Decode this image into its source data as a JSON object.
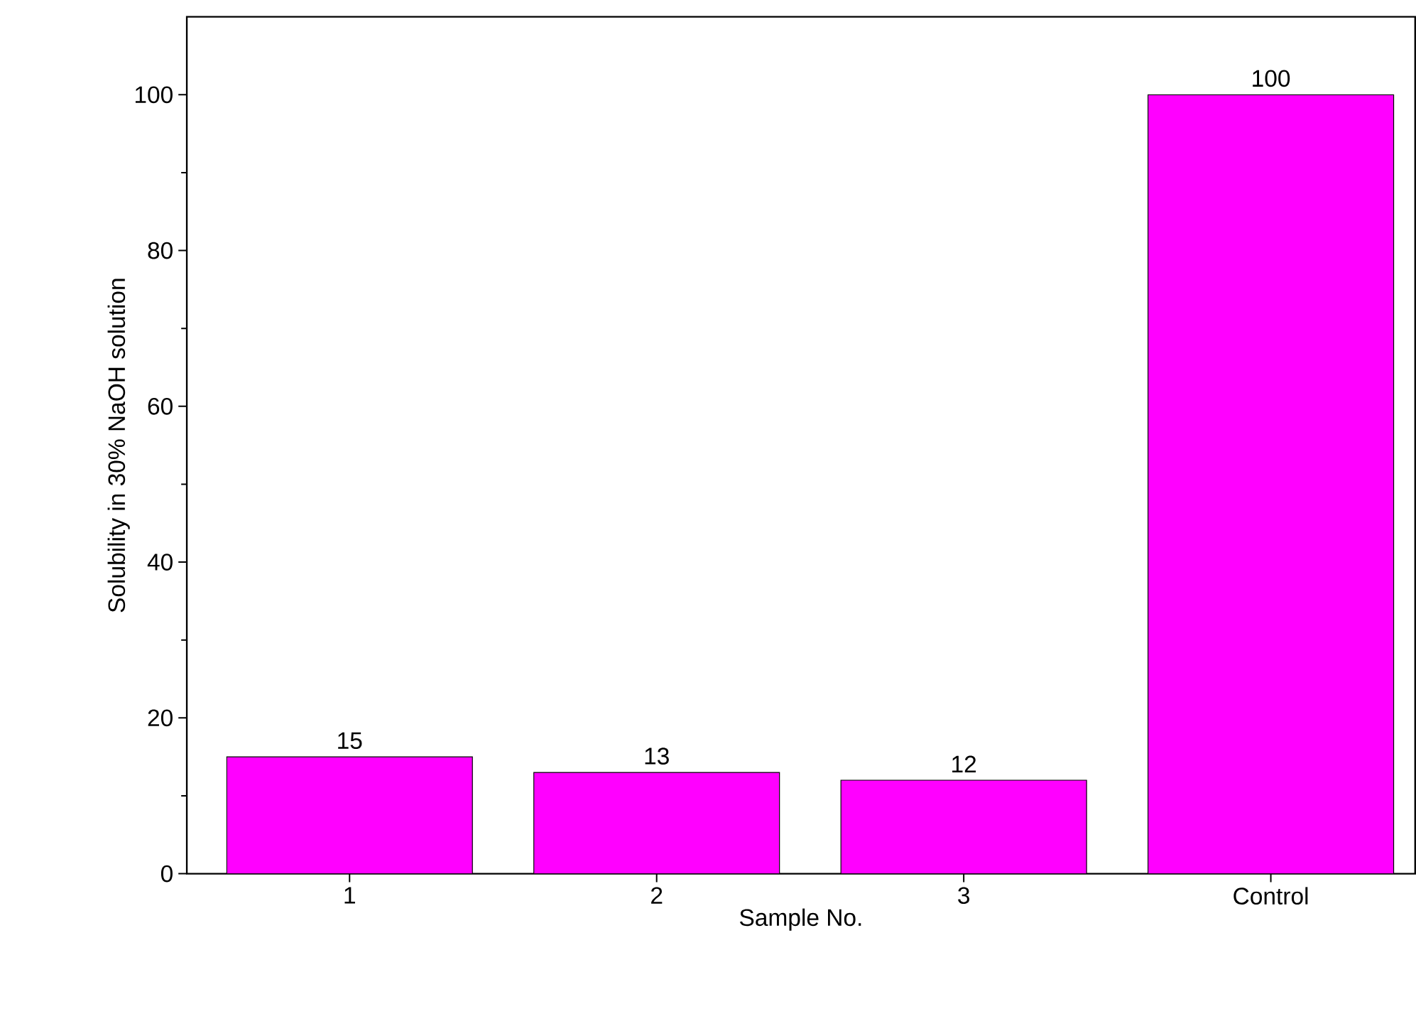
{
  "chart_data": {
    "type": "bar",
    "xlabel": "Sample  No.",
    "ylabel": "Solubility in 30% NaOH solution",
    "categories": [
      "1",
      "2",
      "3",
      "Control"
    ],
    "values": [
      15,
      13,
      12,
      100
    ],
    "color": "#ff00ff",
    "data_labels": true,
    "ylim": [
      0,
      110
    ],
    "yticks": [
      0,
      20,
      40,
      60,
      80,
      100
    ]
  }
}
